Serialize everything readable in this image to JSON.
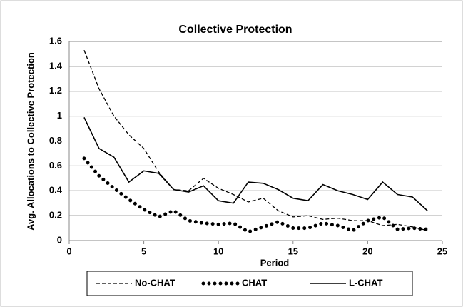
{
  "chart_data": {
    "type": "line",
    "title": "Collective Protection",
    "xlabel": "Period",
    "ylabel": "Avg. Allocations to Collective Protection",
    "x": [
      1,
      2,
      3,
      4,
      5,
      6,
      7,
      8,
      9,
      10,
      11,
      12,
      13,
      14,
      15,
      16,
      17,
      18,
      19,
      20,
      21,
      22,
      23,
      24
    ],
    "series": [
      {
        "name": "No-CHAT",
        "color": "#000000",
        "style": "dashed",
        "values": [
          1.53,
          1.22,
          1.0,
          0.85,
          0.74,
          0.55,
          0.41,
          0.4,
          0.5,
          0.42,
          0.37,
          0.31,
          0.34,
          0.24,
          0.19,
          0.2,
          0.17,
          0.18,
          0.16,
          0.16,
          0.12,
          0.13,
          0.11,
          0.08
        ]
      },
      {
        "name": "CHAT",
        "color": "#000000",
        "style": "dotted",
        "values": [
          0.66,
          0.52,
          0.42,
          0.33,
          0.25,
          0.19,
          0.24,
          0.16,
          0.14,
          0.13,
          0.14,
          0.07,
          0.11,
          0.15,
          0.1,
          0.1,
          0.14,
          0.12,
          0.08,
          0.16,
          0.19,
          0.09,
          0.1,
          0.09
        ]
      },
      {
        "name": "L-CHAT",
        "color": "#000000",
        "style": "solid",
        "values": [
          0.99,
          0.74,
          0.67,
          0.47,
          0.56,
          0.54,
          0.41,
          0.39,
          0.44,
          0.32,
          0.3,
          0.47,
          0.46,
          0.41,
          0.34,
          0.32,
          0.45,
          0.4,
          0.37,
          0.33,
          0.47,
          0.37,
          0.35,
          0.24
        ]
      }
    ],
    "xlim": [
      0,
      25
    ],
    "xticks": [
      0,
      5,
      10,
      15,
      20,
      25
    ],
    "ylim": [
      0,
      1.6
    ],
    "yticks": [
      0,
      0.2,
      0.4,
      0.6,
      0.8,
      1,
      1.2,
      1.4,
      1.6
    ],
    "grid": true,
    "legend": "bottom"
  }
}
